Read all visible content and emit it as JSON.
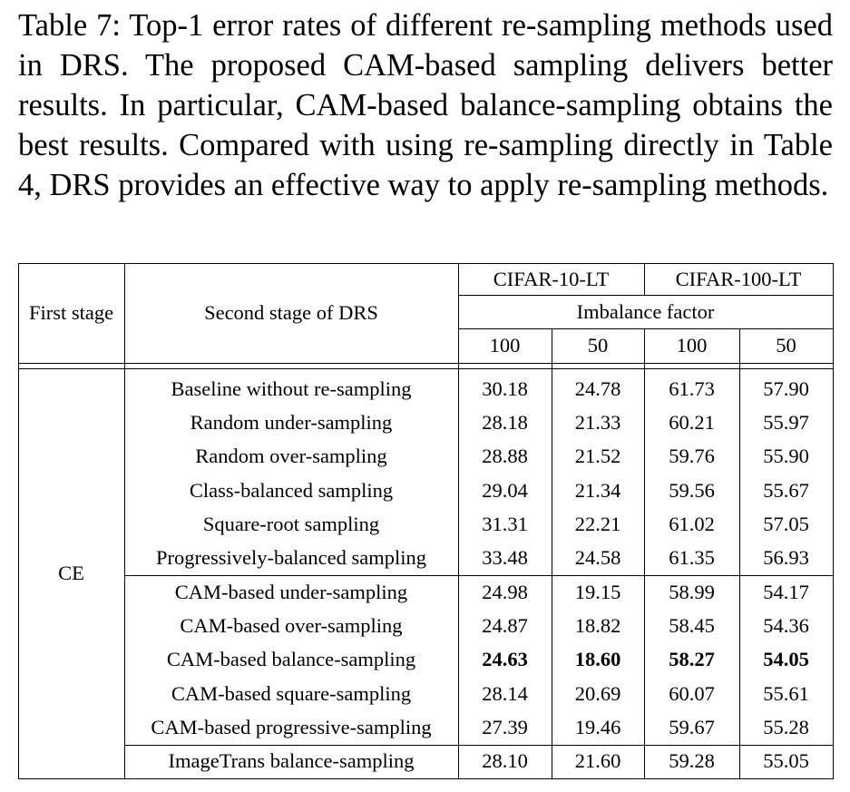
{
  "caption": "Table 7: Top-1 error rates of different re-sampling methods used in DRS. The proposed CAM-based sampling delivers better results. In particular, CAM-based balance-sampling obtains the best results. Compared with using re-sampling directly in Table 4, DRS provides an effective way to apply re-sampling methods.",
  "table": {
    "header": {
      "first_stage": "First stage",
      "second_stage": "Second stage of DRS",
      "datasets": [
        "CIFAR-10-LT",
        "CIFAR-100-LT"
      ],
      "imbalance": "Imbalance factor",
      "factors": [
        "100",
        "50",
        "100",
        "50"
      ]
    },
    "group": "CE",
    "rows": [
      {
        "method": "Baseline without re-sampling",
        "values": [
          "30.18",
          "24.78",
          "61.73",
          "57.90"
        ]
      },
      {
        "method": "Random under-sampling",
        "values": [
          "28.18",
          "21.33",
          "60.21",
          "55.97"
        ]
      },
      {
        "method": "Random over-sampling",
        "values": [
          "28.88",
          "21.52",
          "59.76",
          "55.90"
        ]
      },
      {
        "method": "Class-balanced sampling",
        "values": [
          "29.04",
          "21.34",
          "59.56",
          "55.67"
        ]
      },
      {
        "method": "Square-root sampling",
        "values": [
          "31.31",
          "22.21",
          "61.02",
          "57.05"
        ]
      },
      {
        "method": "Progressively-balanced sampling",
        "values": [
          "33.48",
          "24.58",
          "61.35",
          "56.93"
        ]
      },
      {
        "method": "CAM-based under-sampling",
        "values": [
          "24.98",
          "19.15",
          "58.99",
          "54.17"
        ]
      },
      {
        "method": "CAM-based over-sampling",
        "values": [
          "24.87",
          "18.82",
          "58.45",
          "54.36"
        ]
      },
      {
        "method": "CAM-based balance-sampling",
        "values": [
          "24.63",
          "18.60",
          "58.27",
          "54.05"
        ],
        "bold": true
      },
      {
        "method": "CAM-based square-sampling",
        "values": [
          "28.14",
          "20.69",
          "60.07",
          "55.61"
        ]
      },
      {
        "method": "CAM-based progressive-sampling",
        "values": [
          "27.39",
          "19.46",
          "59.67",
          "55.28"
        ]
      },
      {
        "method": "ImageTrans balance-sampling",
        "values": [
          "28.10",
          "21.60",
          "59.28",
          "55.05"
        ]
      }
    ]
  }
}
